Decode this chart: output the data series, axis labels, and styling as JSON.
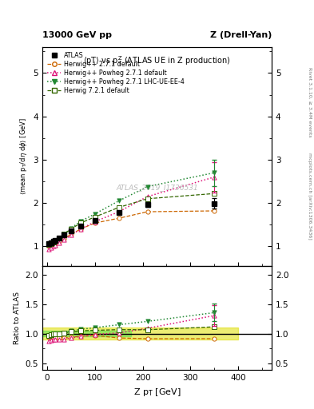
{
  "top_label_left": "13000 GeV pp",
  "top_label_right": "Z (Drell-Yan)",
  "ylabel_main": "<mean p_{T}/dη dφ> [GeV]",
  "ylabel_ratio": "Ratio to ATLAS",
  "xlabel": "Z p_{T} [GeV]",
  "right_label_top": "Rivet 3.1.10, ≥ 3.4M events",
  "right_label_bottom": "mcplots.cern.ch [arXiv:1306.3436]",
  "watermark": "ATLAS_2019_I1736531",
  "ylim_main": [
    0.55,
    5.6
  ],
  "ylim_ratio": [
    0.38,
    2.15
  ],
  "xlim": [
    -10,
    470
  ],
  "atlas_x": [
    2.5,
    7.5,
    12.5,
    17.5,
    25,
    35,
    50,
    70,
    100,
    150,
    210,
    350
  ],
  "atlas_y": [
    1.07,
    1.09,
    1.11,
    1.13,
    1.2,
    1.27,
    1.36,
    1.47,
    1.59,
    1.78,
    1.97,
    1.99
  ],
  "atlas_yerr": [
    0.01,
    0.01,
    0.01,
    0.01,
    0.01,
    0.01,
    0.02,
    0.02,
    0.03,
    0.04,
    0.06,
    0.12
  ],
  "herwig_default_x": [
    2.5,
    7.5,
    12.5,
    17.5,
    25,
    35,
    50,
    70,
    100,
    150,
    210,
    350
  ],
  "herwig_default_y": [
    1.0,
    1.03,
    1.05,
    1.07,
    1.12,
    1.18,
    1.28,
    1.4,
    1.54,
    1.65,
    1.8,
    1.82
  ],
  "herwig_powheg_default_x": [
    2.5,
    7.5,
    12.5,
    17.5,
    25,
    35,
    50,
    70,
    100,
    150,
    210,
    350
  ],
  "herwig_powheg_default_y": [
    0.94,
    0.97,
    1.0,
    1.02,
    1.08,
    1.15,
    1.26,
    1.4,
    1.57,
    1.8,
    2.15,
    2.6
  ],
  "herwig_powheg_lhc_x": [
    2.5,
    7.5,
    12.5,
    17.5,
    25,
    35,
    50,
    70,
    100,
    150,
    210,
    350
  ],
  "herwig_powheg_lhc_y": [
    1.04,
    1.07,
    1.09,
    1.12,
    1.19,
    1.28,
    1.42,
    1.58,
    1.75,
    2.05,
    2.38,
    2.7
  ],
  "herwig7_default_x": [
    2.5,
    7.5,
    12.5,
    17.5,
    25,
    35,
    50,
    70,
    100,
    150,
    210,
    350
  ],
  "herwig7_default_y": [
    1.04,
    1.07,
    1.1,
    1.13,
    1.2,
    1.28,
    1.4,
    1.54,
    1.68,
    1.9,
    2.1,
    2.22
  ],
  "herwig_powheg_lhc_yerr_last": 0.3,
  "herwig_powheg_default_yerr_last": 0.35,
  "color_atlas": "#000000",
  "color_herwig_default": "#cc6600",
  "color_herwig_powheg_default": "#dd1177",
  "color_herwig_powheg_lhc": "#228833",
  "color_herwig7_default": "#336600",
  "band_green_color": "#44dd44",
  "band_yellow_color": "#dddd00",
  "yticks_main": [
    1,
    2,
    3,
    4,
    5
  ],
  "yticks_ratio": [
    0.5,
    1.0,
    1.5,
    2.0
  ]
}
